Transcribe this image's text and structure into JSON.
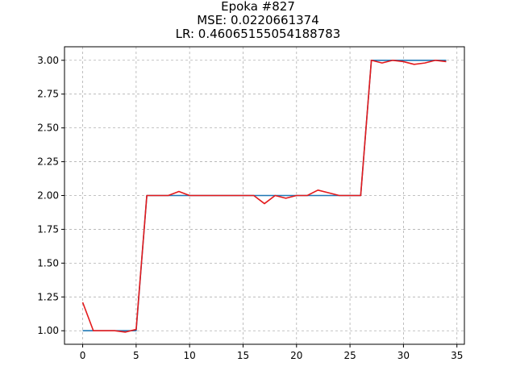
{
  "chart_data": {
    "type": "line",
    "title_lines": [
      "Epoka #827",
      "MSE: 0.0220661374",
      "LR: 0.46065155054188783"
    ],
    "xlabel": "",
    "ylabel": "",
    "xlim": [
      -1.7,
      35.7
    ],
    "ylim": [
      0.9,
      3.1
    ],
    "x_ticks": [
      "0",
      "5",
      "10",
      "15",
      "20",
      "25",
      "30",
      "35"
    ],
    "y_ticks": [
      "1.00",
      "1.25",
      "1.50",
      "1.75",
      "2.00",
      "2.25",
      "2.50",
      "2.75",
      "3.00"
    ],
    "grid": true,
    "legend": "none",
    "x": [
      0,
      1,
      2,
      3,
      4,
      5,
      6,
      7,
      8,
      9,
      10,
      11,
      12,
      13,
      14,
      15,
      16,
      17,
      18,
      19,
      20,
      21,
      22,
      23,
      24,
      25,
      26,
      27,
      28,
      29,
      30,
      31,
      32,
      33,
      34
    ],
    "series": [
      {
        "color": "#1f77b4",
        "values": [
          1,
          1,
          1,
          1,
          1,
          1,
          2,
          2,
          2,
          2,
          2,
          2,
          2,
          2,
          2,
          2,
          2,
          2,
          2,
          2,
          2,
          2,
          2,
          2,
          2,
          2,
          2,
          3,
          3,
          3,
          3,
          3,
          3,
          3,
          3
        ]
      },
      {
        "color": "#e41a1c",
        "values": [
          1.21,
          1.0,
          1.0,
          1.0,
          0.99,
          1.01,
          2.0,
          2.0,
          2.0,
          2.03,
          2.0,
          2.0,
          2.0,
          2.0,
          2.0,
          2.0,
          2.0,
          1.94,
          2.0,
          1.98,
          2.0,
          2.0,
          2.04,
          2.02,
          2.0,
          2.0,
          2.0,
          3.0,
          2.98,
          3.0,
          2.99,
          2.97,
          2.98,
          3.0,
          2.99
        ]
      }
    ]
  }
}
